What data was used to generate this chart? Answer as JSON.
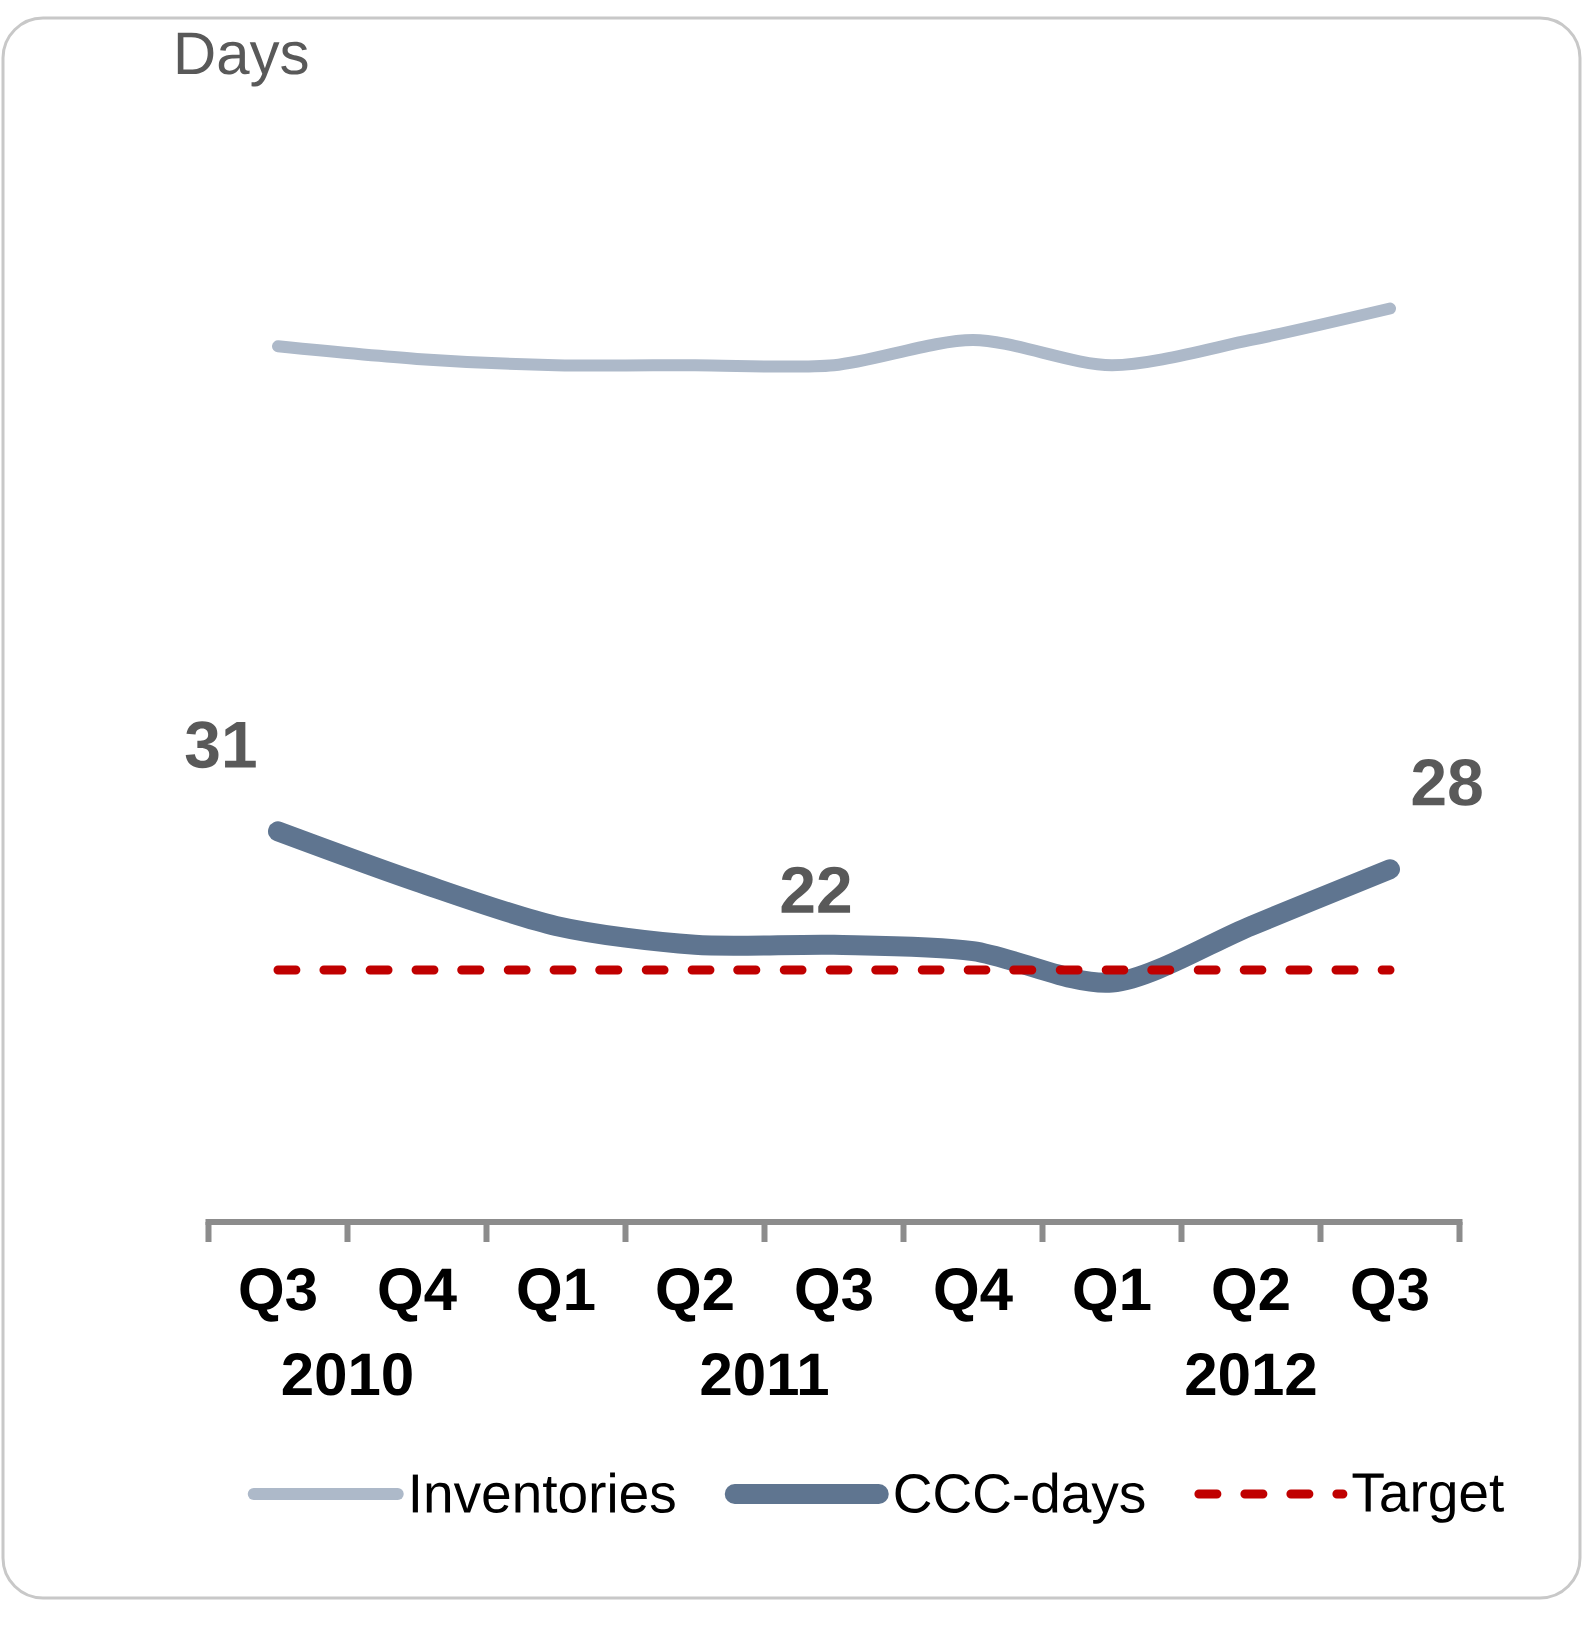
{
  "chart_data": {
    "type": "line",
    "ylabel": "Days",
    "categories": [
      "Q3",
      "Q4",
      "Q1",
      "Q2",
      "Q3",
      "Q4",
      "Q1",
      "Q2",
      "Q3"
    ],
    "annotations": [
      "2010",
      "2011",
      "2012"
    ],
    "series": [
      {
        "name": "Inventories",
        "color": "#adb9c9",
        "values": [
          69.5,
          68.5,
          68,
          68,
          68,
          70,
          68,
          70,
          72.5
        ]
      },
      {
        "name": "CCC-days",
        "color": "#5f7590",
        "values": [
          31,
          27,
          23.5,
          22,
          22,
          21.5,
          19,
          23.5,
          28
        ],
        "value_labels": [
          "31",
          null,
          null,
          null,
          "22",
          null,
          null,
          null,
          "28"
        ]
      },
      {
        "name": "Target",
        "color": "#c00000",
        "line_style": "dashed",
        "values": [
          20,
          20,
          20,
          20,
          20,
          20,
          20,
          20,
          20
        ]
      }
    ],
    "tick_labels": "x",
    "legend": "bottom"
  }
}
